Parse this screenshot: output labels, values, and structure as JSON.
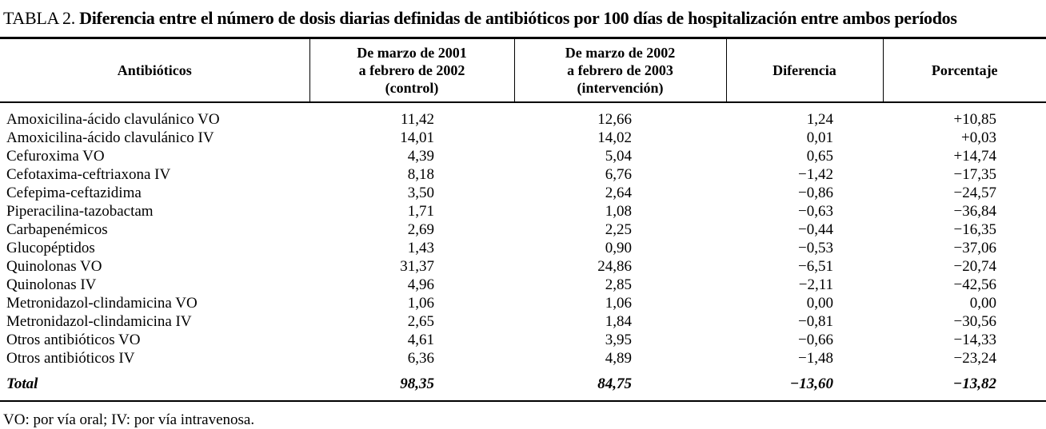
{
  "page": {
    "title_label": "TABLA 2.",
    "title_text": "Diferencia entre el número de dosis diarias definidas de antibióticos por 100 días de hospitalización entre ambos períodos",
    "footnote": "VO: por vía oral; IV: por vía intravenosa."
  },
  "colors": {
    "text": "#000000",
    "background": "#ffffff",
    "rule": "#000000"
  },
  "table": {
    "columns": [
      {
        "label": "Antibióticos"
      },
      {
        "label": "De marzo de 2001\na febrero de 2002\n(control)"
      },
      {
        "label": "De marzo de 2002\na febrero de 2003\n(intervención)"
      },
      {
        "label": "Diferencia"
      },
      {
        "label": "Porcentaje"
      }
    ],
    "rows": [
      [
        "Amoxicilina-ácido clavulánico VO",
        "11,42",
        "12,66",
        "1,24",
        "+10,85"
      ],
      [
        "Amoxicilina-ácido clavulánico IV",
        "14,01",
        "14,02",
        "0,01",
        "+0,03"
      ],
      [
        "Cefuroxima VO",
        "4,39",
        "5,04",
        "0,65",
        "+14,74"
      ],
      [
        "Cefotaxima-ceftriaxona IV",
        "8,18",
        "6,76",
        "−1,42",
        "−17,35"
      ],
      [
        "Cefepima-ceftazidima",
        "3,50",
        "2,64",
        "−0,86",
        "−24,57"
      ],
      [
        "Piperacilina-tazobactam",
        "1,71",
        "1,08",
        "−0,63",
        "−36,84"
      ],
      [
        "Carbapenémicos",
        "2,69",
        "2,25",
        "−0,44",
        "−16,35"
      ],
      [
        "Glucopéptidos",
        "1,43",
        "0,90",
        "−0,53",
        "−37,06"
      ],
      [
        "Quinolonas VO",
        "31,37",
        "24,86",
        "−6,51",
        "−20,74"
      ],
      [
        "Quinolonas IV",
        "4,96",
        "2,85",
        "−2,11",
        "−42,56"
      ],
      [
        "Metronidazol-clindamicina VO",
        "1,06",
        "1,06",
        "0,00",
        "0,00"
      ],
      [
        "Metronidazol-clindamicina IV",
        "2,65",
        "1,84",
        "−0,81",
        "−30,56"
      ],
      [
        "Otros antibióticos VO",
        "4,61",
        "3,95",
        "−0,66",
        "−14,33"
      ],
      [
        "Otros antibióticos IV",
        "6,36",
        "4,89",
        "−1,48",
        "−23,24"
      ]
    ],
    "total": {
      "label": "Total",
      "control": "98,35",
      "intervention": "84,75",
      "difference": "−13,60",
      "percentage": "−13,82"
    }
  }
}
